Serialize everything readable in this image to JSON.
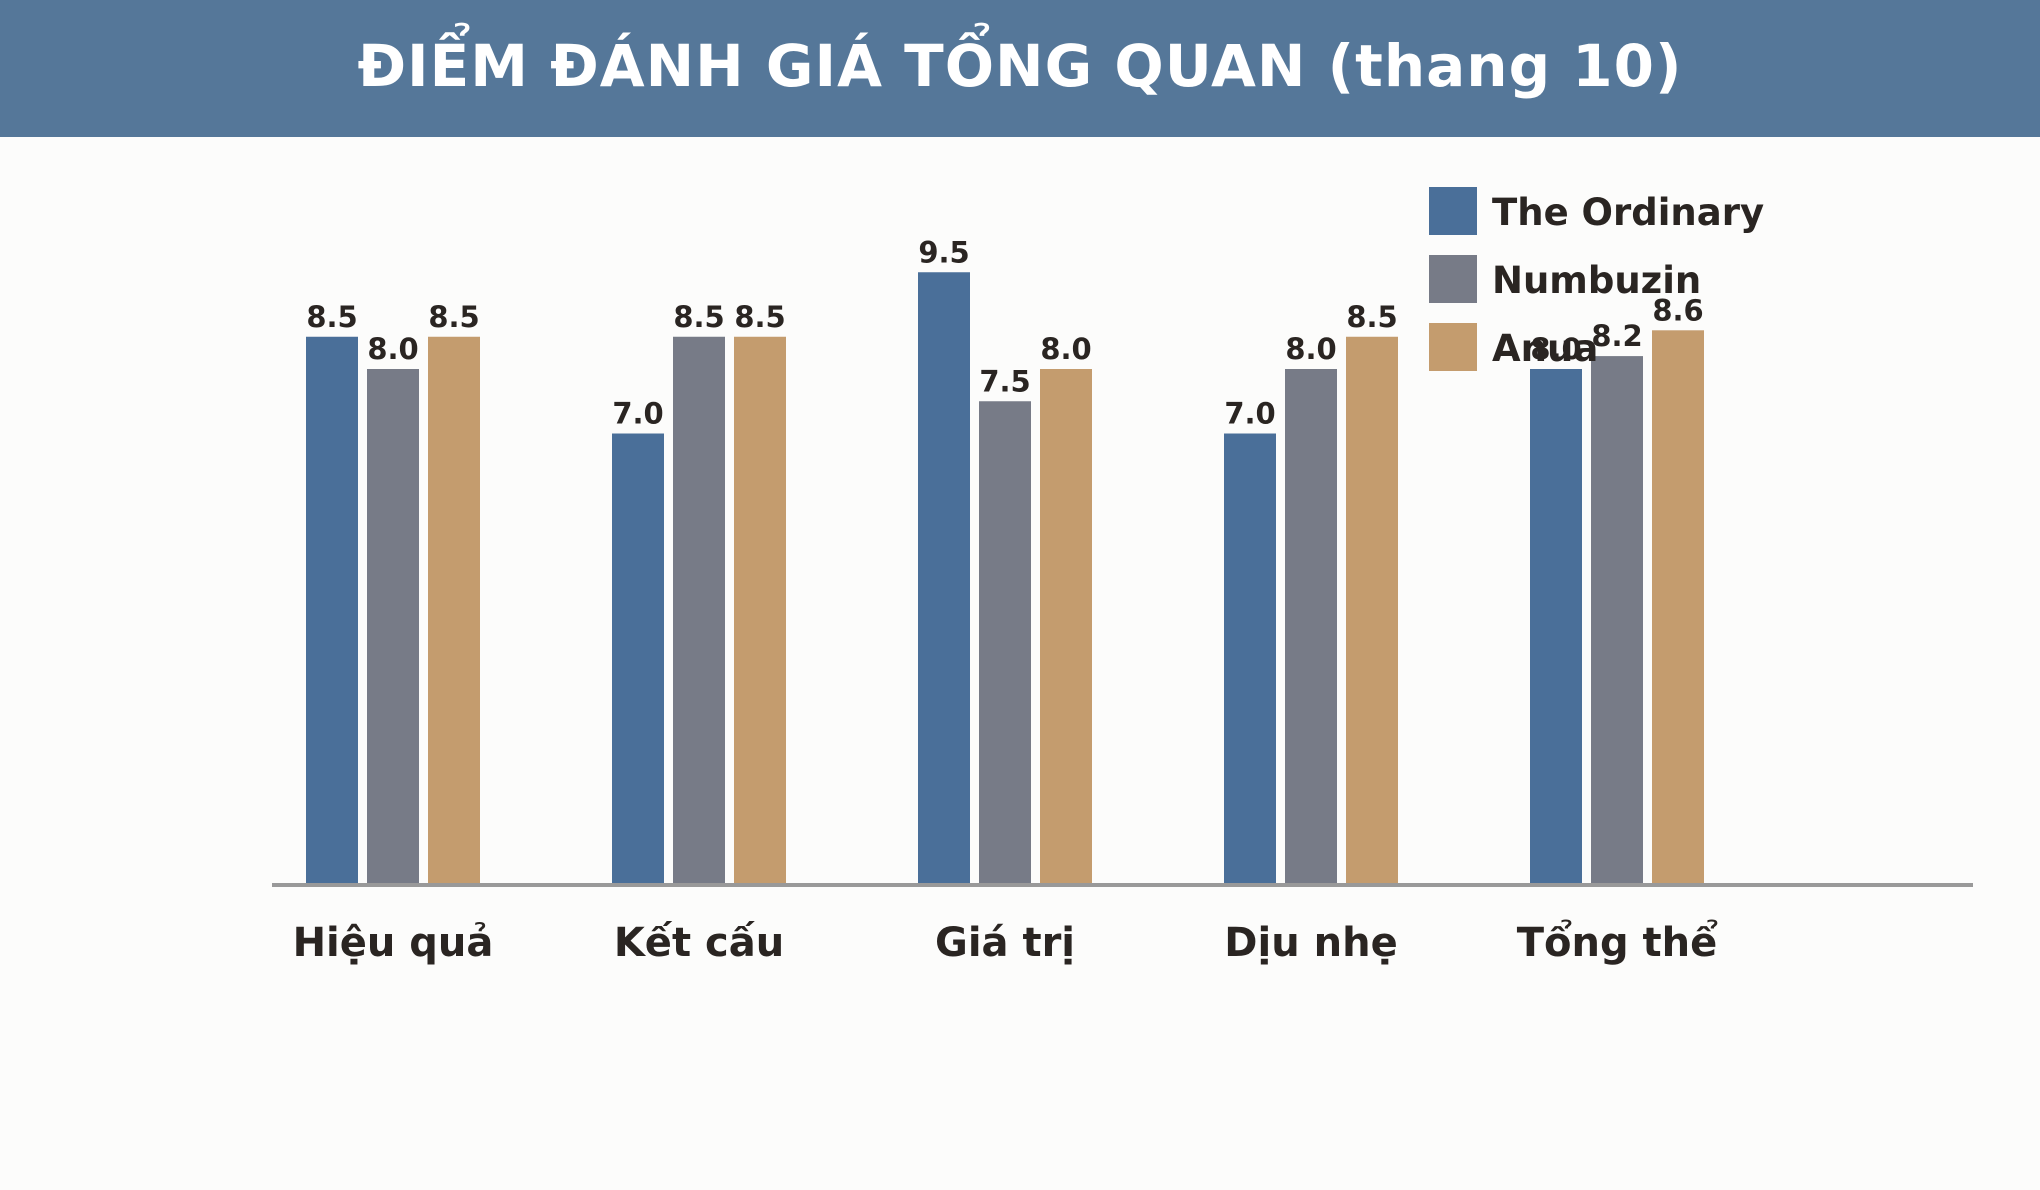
{
  "chart_data": {
    "type": "bar",
    "title": "ĐIỂM ĐÁNH GIÁ TỔNG QUAN (thang 10)",
    "xlabel": "",
    "ylabel": "",
    "ylim": [
      0,
      10
    ],
    "grid": false,
    "legend_position": "top-right",
    "categories": [
      "Hiệu quả",
      "Kết cấu",
      "Giá trị",
      "Dịu nhẹ",
      "Tổng thể"
    ],
    "series": [
      {
        "name": "The Ordinary",
        "color": "#4a6f99",
        "values": [
          8.5,
          7.0,
          9.5,
          7.0,
          8.0
        ],
        "labels": [
          "8.5",
          "7.0",
          "9.5",
          "7.0",
          "8.0"
        ]
      },
      {
        "name": "Numbuzin",
        "color": "#777b87",
        "values": [
          8.0,
          8.5,
          7.5,
          8.0,
          8.2
        ],
        "labels": [
          "8.0",
          "8.5",
          "7.5",
          "8.0",
          "8.2"
        ]
      },
      {
        "name": "Anua",
        "color": "#c49c6e",
        "values": [
          8.5,
          8.5,
          8.0,
          8.5,
          8.6
        ],
        "labels": [
          "8.5",
          "8.5",
          "8.0",
          "8.5",
          "8.6"
        ]
      }
    ]
  },
  "colors": {
    "header_bg": "#557799",
    "axis": "#999999",
    "text": "#2a2522"
  }
}
